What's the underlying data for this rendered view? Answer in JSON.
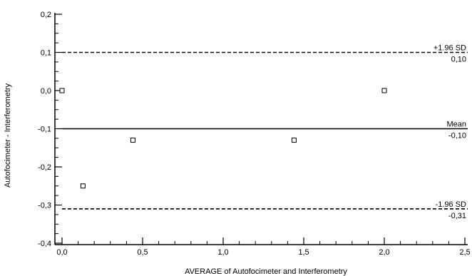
{
  "chart_data": {
    "type": "scatter",
    "title": "",
    "xlabel": "AVERAGE of Autofocimeter and Interferometry",
    "ylabel": "Autofocimeter - Interferometry",
    "xlim": [
      0,
      2.5
    ],
    "ylim": [
      -0.4,
      0.2
    ],
    "xticks": [
      0,
      0.5,
      1.0,
      1.5,
      2.0,
      2.5
    ],
    "xtick_labels": [
      "0,0",
      "0,5",
      "1,0",
      "1,5",
      "2,0",
      "2,5"
    ],
    "yticks": [
      0.2,
      0.1,
      0.0,
      -0.1,
      -0.2,
      -0.3,
      -0.4
    ],
    "ytick_labels": [
      "0,2",
      "0,1",
      "0,0",
      "-0,1",
      "-0,2",
      "-0,3",
      "-0,4"
    ],
    "grid": false,
    "points": [
      {
        "x": 0.0,
        "y": 0.0
      },
      {
        "x": 0.13,
        "y": -0.25
      },
      {
        "x": 0.44,
        "y": -0.13
      },
      {
        "x": 1.44,
        "y": -0.13
      },
      {
        "x": 2.0,
        "y": 0.0
      }
    ],
    "reference_lines": [
      {
        "name": "+1.96 SD",
        "value": 0.1,
        "value_label": "0,10",
        "style": "dashed"
      },
      {
        "name": "Mean",
        "value": -0.1,
        "value_label": "-0,10",
        "style": "solid"
      },
      {
        "name": "-1.96 SD",
        "value": -0.31,
        "value_label": "-0,31",
        "style": "dashed"
      }
    ]
  }
}
